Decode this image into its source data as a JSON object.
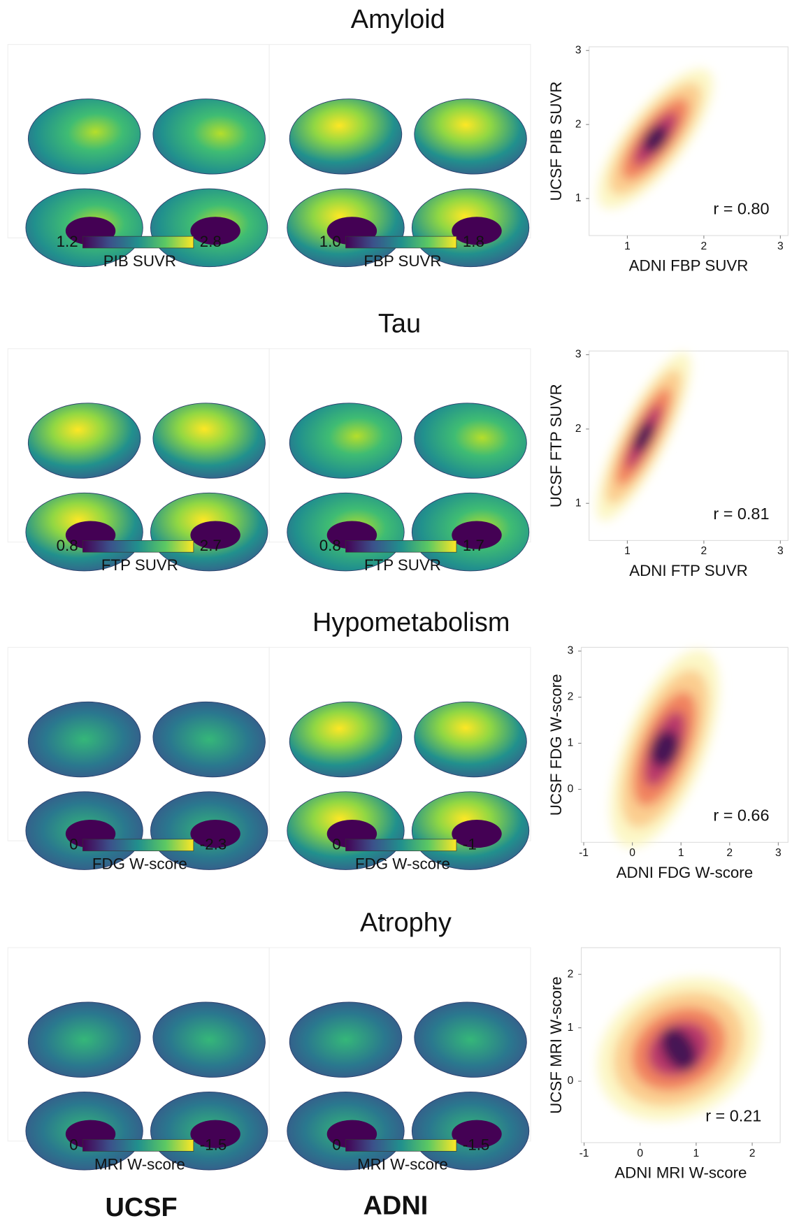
{
  "sections": [
    {
      "title": "Amyloid",
      "maps": [
        {
          "min": "1.2",
          "max": "2.8",
          "label": "PIB SUVR"
        },
        {
          "min": "1.0",
          "max": "1.8",
          "label": "FBP SUVR"
        }
      ],
      "scatter": {
        "xlabel": "ADNI FBP SUVR",
        "ylabel": "UCSF PIB SUVR",
        "r": "r = 0.80",
        "xlim": [
          0.5,
          3.1
        ],
        "ylim": [
          0.5,
          3.05
        ],
        "xticks": [
          1,
          2,
          3
        ],
        "yticks": [
          1,
          2,
          3
        ]
      }
    },
    {
      "title": "Tau",
      "maps": [
        {
          "min": "0.8",
          "max": "2.7",
          "label": "FTP SUVR"
        },
        {
          "min": "0.8",
          "max": "1.7",
          "label": "FTP SUVR"
        }
      ],
      "scatter": {
        "xlabel": "ADNI FTP SUVR",
        "ylabel": "UCSF FTP SUVR",
        "r": "r = 0.81",
        "xlim": [
          0.5,
          3.1
        ],
        "ylim": [
          0.5,
          3.05
        ],
        "xticks": [
          1,
          2,
          3
        ],
        "yticks": [
          1,
          2,
          3
        ]
      }
    },
    {
      "title": "Hypometabolism",
      "maps": [
        {
          "min": "0",
          "max": "-2.3",
          "label": "FDG W-score"
        },
        {
          "min": "0",
          "max": "-1",
          "label": "FDG W-score"
        }
      ],
      "scatter": {
        "xlabel": "ADNI FDG W-score",
        "ylabel": "UCSF FDG W-score",
        "r": "r = 0.66",
        "xlim": [
          -1.05,
          3.2
        ],
        "ylim": [
          -1.15,
          3.08
        ],
        "xticks": [
          -1,
          0,
          1,
          2,
          3
        ],
        "yticks": [
          0,
          1,
          2,
          3
        ]
      }
    },
    {
      "title": "Atrophy",
      "maps": [
        {
          "min": "0",
          "max": "-1.5",
          "label": "MRI W-score"
        },
        {
          "min": "0",
          "max": "-1.5",
          "label": "MRI W-score"
        }
      ],
      "scatter": {
        "xlabel": "ADNI MRI W-score",
        "ylabel": "UCSF MRI W-score",
        "r": "r = 0.21",
        "xlim": [
          -1.05,
          2.5
        ],
        "ylim": [
          -1.15,
          2.5
        ],
        "xticks": [
          -1,
          0,
          1,
          2
        ],
        "yticks": [
          0,
          1,
          2
        ]
      }
    }
  ],
  "footer": {
    "left": "UCSF",
    "right": "ADNI"
  }
}
